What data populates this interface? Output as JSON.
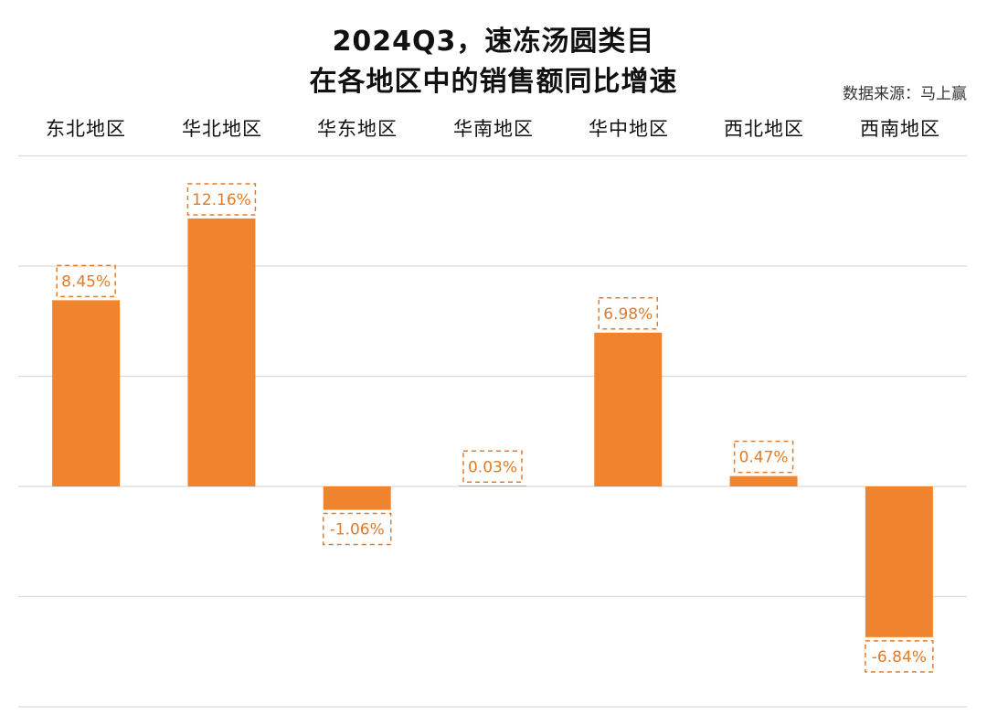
{
  "title_line1": "2024Q3，速冻汤圆类目",
  "title_line2": "在各地区中的销售额同比增速",
  "source": "数据来源：马上赢",
  "colors": {
    "bar": "#f0842e",
    "label": "#e07b2a",
    "grid": "#d9d9d9"
  },
  "chart_data": {
    "type": "bar",
    "categories": [
      "东北地区",
      "华北地区",
      "华东地区",
      "华南地区",
      "华中地区",
      "西北地区",
      "西南地区"
    ],
    "values": [
      8.45,
      12.16,
      -1.06,
      0.03,
      6.98,
      0.47,
      -6.84
    ],
    "labels": [
      "8.45%",
      "12.16%",
      "-1.06%",
      "0.03%",
      "6.98%",
      "0.47%",
      "-6.84%"
    ],
    "ylim": [
      -10,
      15
    ],
    "grid": true,
    "data_label_style": "dashed-box"
  }
}
